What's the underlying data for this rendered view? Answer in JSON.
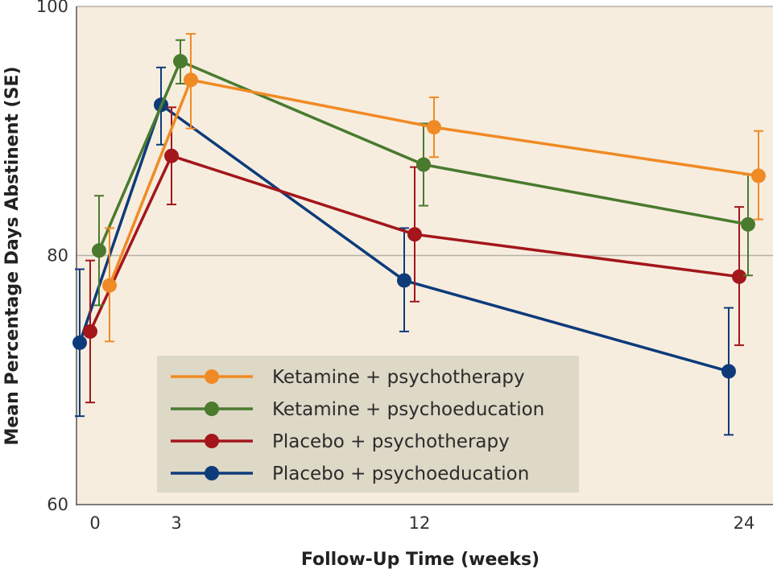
{
  "chart_data": {
    "type": "line",
    "title": "",
    "xlabel": "Follow-Up Time (weeks)",
    "ylabel": "Mean Percentage Days Abstinent (SE)",
    "ylim": [
      60,
      100
    ],
    "yticks": [
      60,
      80,
      100
    ],
    "xticks": [
      0,
      3,
      12,
      24
    ],
    "grid": "horizontal",
    "legend_position": "bottom-left",
    "colors": {
      "background": "#f6eddf",
      "gridline": "#b5b0a6",
      "legend_box": "#ded8c6"
    },
    "series": [
      {
        "name": "Ketamine + psychotherapy",
        "color": "#f08a24",
        "x": [
          0,
          3,
          12,
          24
        ],
        "y": [
          77.6,
          94.1,
          90.3,
          86.4
        ],
        "se_low": [
          73.1,
          90.2,
          87.9,
          82.9
        ],
        "se_high": [
          82.2,
          97.8,
          92.7,
          90.0
        ]
      },
      {
        "name": "Ketamine + psychoeducation",
        "color": "#4a7a2e",
        "x": [
          0,
          3,
          12,
          24
        ],
        "y": [
          80.4,
          95.6,
          87.3,
          82.5
        ],
        "se_low": [
          76.0,
          93.8,
          84.0,
          78.4
        ],
        "se_high": [
          84.8,
          97.3,
          90.6,
          86.5
        ]
      },
      {
        "name": "Placebo + psychotherapy",
        "color": "#a3161b",
        "x": [
          0,
          3,
          12,
          24
        ],
        "y": [
          73.9,
          88.0,
          81.7,
          78.3
        ],
        "se_low": [
          68.2,
          84.1,
          76.3,
          72.8
        ],
        "se_high": [
          79.6,
          91.9,
          87.1,
          83.9
        ]
      },
      {
        "name": "Placebo + psychoeducation",
        "color": "#0d3b7a",
        "x": [
          0,
          3,
          12,
          24
        ],
        "y": [
          73.0,
          92.1,
          78.0,
          70.7
        ],
        "se_low": [
          67.1,
          88.9,
          73.9,
          65.6
        ],
        "se_high": [
          78.9,
          95.1,
          82.2,
          75.8
        ]
      }
    ]
  }
}
